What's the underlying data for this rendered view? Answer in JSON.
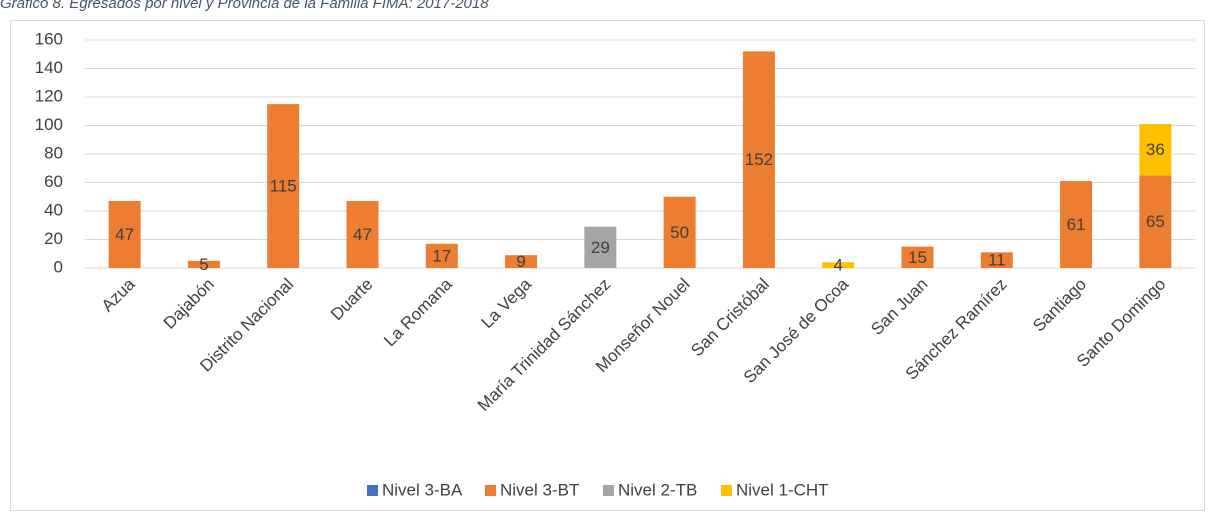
{
  "chart_data": {
    "type": "stacked_bar",
    "title": "Gráfico 8. Egresados por nivel y Provincia de la Familia FIMA: 2017-2018",
    "categories": [
      "Azua",
      "Dajabón",
      "Distrito Nacional",
      "Duarte",
      "La Romana",
      "La Vega",
      "María Trinidad Sánchez",
      "Monseñor Nouel",
      "San Cristóbal",
      "San José de Ocoa",
      "San Juan",
      "Sánchez Ramírez",
      "Santiago",
      "Santo Domingo"
    ],
    "series": [
      {
        "name": "Nivel 3-BA",
        "color": "#4472c4",
        "values": [
          null,
          null,
          null,
          null,
          null,
          null,
          null,
          null,
          null,
          null,
          null,
          null,
          null,
          null
        ]
      },
      {
        "name": "Nivel 3-BT",
        "color": "#ed7d31",
        "values": [
          47,
          5,
          115,
          47,
          17,
          9,
          null,
          50,
          152,
          null,
          15,
          11,
          61,
          65
        ]
      },
      {
        "name": "Nivel 2-TB",
        "color": "#a5a5a5",
        "values": [
          null,
          null,
          null,
          null,
          null,
          null,
          29,
          null,
          null,
          null,
          null,
          null,
          null,
          null
        ]
      },
      {
        "name": "Nivel 1-CHT",
        "color": "#ffc000",
        "values": [
          null,
          null,
          null,
          null,
          null,
          null,
          null,
          null,
          null,
          4,
          null,
          null,
          null,
          36
        ]
      }
    ],
    "ylim": [
      0,
      160
    ],
    "yticks": [
      0,
      20,
      40,
      60,
      80,
      100,
      120,
      140,
      160
    ],
    "grid": true,
    "legend": "bottom"
  }
}
